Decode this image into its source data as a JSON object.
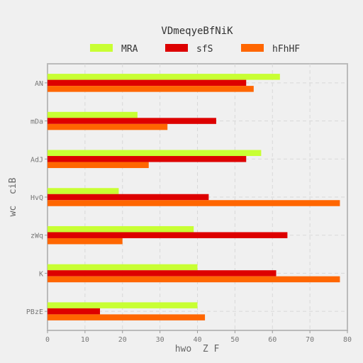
{
  "chart_data": {
    "type": "bar",
    "orientation": "horizontal",
    "title": "VDmeqyeBfNiK",
    "xlabel": "hwo  Z F",
    "ylabel": "wc  ciB",
    "categories": [
      "AN",
      "mDa",
      "AdJ",
      "HvQ",
      "zWq",
      "K",
      "PBzE"
    ],
    "series": [
      {
        "name": "MRA",
        "color": "#c8ff33",
        "values": [
          62,
          24,
          57,
          19,
          39,
          40,
          40
        ]
      },
      {
        "name": "sfS",
        "color": "#dd0000",
        "values": [
          53,
          45,
          53,
          43,
          64,
          61,
          14
        ]
      },
      {
        "name": "hFhHF",
        "color": "#ff6600",
        "values": [
          55,
          32,
          27,
          78,
          20,
          78,
          42
        ]
      }
    ],
    "xlim": [
      0,
      80
    ],
    "xticks": [
      "0",
      "10",
      "20",
      "30",
      "40",
      "50",
      "60",
      "70",
      "80"
    ],
    "grid": true,
    "legend": "top-center"
  }
}
